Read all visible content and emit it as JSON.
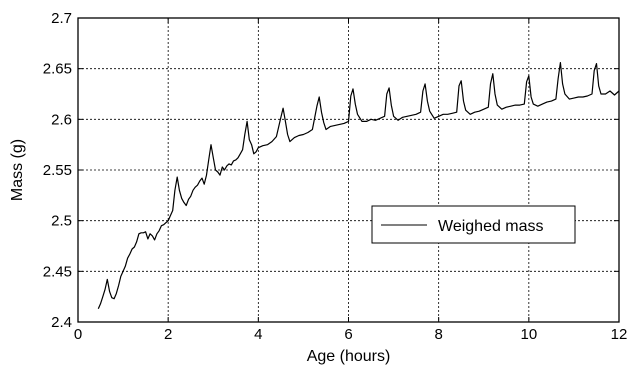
{
  "chart_data": {
    "type": "line",
    "title": "",
    "xlabel": "Age (hours)",
    "ylabel": "Mass (g)",
    "xlim": [
      0,
      12
    ],
    "ylim": [
      2.4,
      2.7
    ],
    "x_ticks": [
      0,
      2,
      4,
      6,
      8,
      10,
      12
    ],
    "x_tick_labels": [
      "0",
      "2",
      "4",
      "6",
      "8",
      "10",
      "12"
    ],
    "y_ticks": [
      2.4,
      2.45,
      2.5,
      2.55,
      2.6,
      2.65,
      2.7
    ],
    "y_tick_labels": [
      "2.4",
      "2.45",
      "2.5",
      "2.55",
      "2.6",
      "2.65",
      "2.7"
    ],
    "grid": true,
    "legend": {
      "position": "right-middle",
      "entries": [
        "Weighed mass"
      ]
    },
    "series": [
      {
        "name": "Weighed mass",
        "color": "#000000",
        "x": [
          0.45,
          0.5,
          0.55,
          0.6,
          0.65,
          0.7,
          0.75,
          0.8,
          0.85,
          0.9,
          0.95,
          1.0,
          1.05,
          1.1,
          1.15,
          1.2,
          1.25,
          1.3,
          1.35,
          1.4,
          1.45,
          1.5,
          1.55,
          1.6,
          1.65,
          1.7,
          1.75,
          1.8,
          1.85,
          1.9,
          1.95,
          2.0,
          2.05,
          2.1,
          2.15,
          2.2,
          2.25,
          2.3,
          2.35,
          2.4,
          2.45,
          2.5,
          2.55,
          2.6,
          2.65,
          2.7,
          2.75,
          2.8,
          2.85,
          2.9,
          2.95,
          3.0,
          3.05,
          3.1,
          3.15,
          3.2,
          3.25,
          3.3,
          3.35,
          3.4,
          3.45,
          3.5,
          3.55,
          3.6,
          3.65,
          3.7,
          3.75,
          3.8,
          3.85,
          3.9,
          3.95,
          4.0,
          4.1,
          4.2,
          4.3,
          4.4,
          4.5,
          4.55,
          4.6,
          4.65,
          4.7,
          4.8,
          4.9,
          5.0,
          5.1,
          5.2,
          5.3,
          5.35,
          5.4,
          5.45,
          5.5,
          5.6,
          5.7,
          5.8,
          5.9,
          6.0,
          6.05,
          6.1,
          6.15,
          6.2,
          6.3,
          6.4,
          6.5,
          6.6,
          6.7,
          6.8,
          6.85,
          6.9,
          6.95,
          7.0,
          7.1,
          7.2,
          7.3,
          7.4,
          7.5,
          7.6,
          7.65,
          7.7,
          7.75,
          7.8,
          7.9,
          8.0,
          8.1,
          8.2,
          8.3,
          8.4,
          8.45,
          8.5,
          8.55,
          8.6,
          8.7,
          8.8,
          8.9,
          9.0,
          9.1,
          9.15,
          9.2,
          9.25,
          9.3,
          9.4,
          9.5,
          9.6,
          9.7,
          9.8,
          9.9,
          9.95,
          10.0,
          10.05,
          10.1,
          10.2,
          10.3,
          10.4,
          10.5,
          10.6,
          10.65,
          10.7,
          10.75,
          10.8,
          10.9,
          11.0,
          11.1,
          11.2,
          11.3,
          11.4,
          11.45,
          11.5,
          11.55,
          11.6,
          11.7,
          11.8,
          11.9,
          12.0
        ],
        "y": [
          2.413,
          2.418,
          2.425,
          2.432,
          2.442,
          2.43,
          2.424,
          2.423,
          2.428,
          2.436,
          2.445,
          2.45,
          2.455,
          2.463,
          2.467,
          2.472,
          2.474,
          2.479,
          2.487,
          2.488,
          2.488,
          2.489,
          2.482,
          2.487,
          2.485,
          2.481,
          2.487,
          2.49,
          2.495,
          2.496,
          2.498,
          2.5,
          2.505,
          2.51,
          2.53,
          2.543,
          2.53,
          2.522,
          2.518,
          2.515,
          2.521,
          2.524,
          2.53,
          2.533,
          2.535,
          2.539,
          2.542,
          2.536,
          2.545,
          2.56,
          2.575,
          2.562,
          2.55,
          2.548,
          2.545,
          2.553,
          2.55,
          2.554,
          2.556,
          2.555,
          2.559,
          2.56,
          2.562,
          2.566,
          2.57,
          2.585,
          2.598,
          2.58,
          2.575,
          2.566,
          2.568,
          2.572,
          2.574,
          2.575,
          2.578,
          2.583,
          2.602,
          2.611,
          2.598,
          2.585,
          2.578,
          2.582,
          2.584,
          2.585,
          2.587,
          2.59,
          2.613,
          2.622,
          2.607,
          2.597,
          2.59,
          2.593,
          2.594,
          2.595,
          2.596,
          2.598,
          2.623,
          2.63,
          2.615,
          2.605,
          2.598,
          2.598,
          2.6,
          2.599,
          2.601,
          2.603,
          2.625,
          2.631,
          2.614,
          2.603,
          2.599,
          2.602,
          2.603,
          2.604,
          2.605,
          2.607,
          2.628,
          2.635,
          2.618,
          2.608,
          2.601,
          2.603,
          2.605,
          2.605,
          2.606,
          2.607,
          2.633,
          2.638,
          2.618,
          2.609,
          2.605,
          2.607,
          2.608,
          2.61,
          2.612,
          2.635,
          2.645,
          2.625,
          2.614,
          2.61,
          2.612,
          2.613,
          2.614,
          2.614,
          2.615,
          2.637,
          2.643,
          2.622,
          2.615,
          2.613,
          2.615,
          2.617,
          2.618,
          2.62,
          2.64,
          2.656,
          2.635,
          2.625,
          2.62,
          2.621,
          2.622,
          2.622,
          2.623,
          2.625,
          2.648,
          2.655,
          2.633,
          2.625,
          2.625,
          2.628,
          2.624,
          2.628
        ]
      }
    ]
  }
}
